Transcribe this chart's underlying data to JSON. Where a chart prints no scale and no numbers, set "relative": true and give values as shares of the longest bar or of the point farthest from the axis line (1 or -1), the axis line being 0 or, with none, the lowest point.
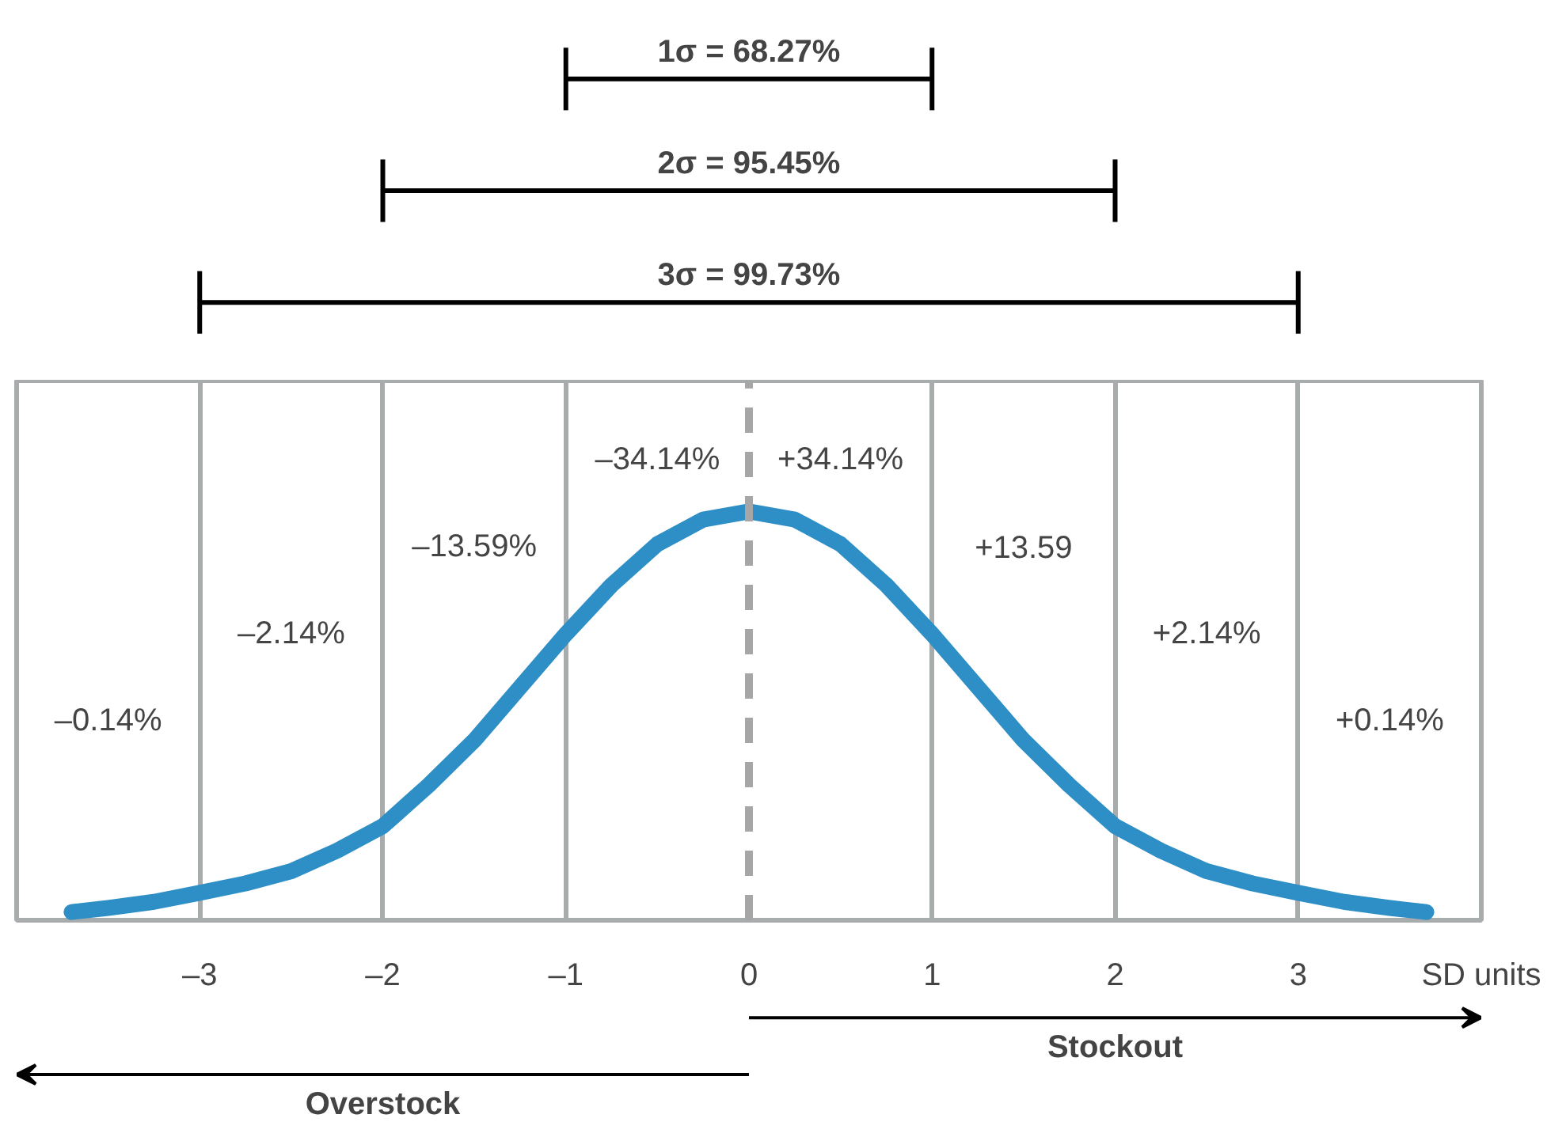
{
  "chart_data": {
    "type": "line",
    "relative": true,
    "xlabel": "SD units",
    "xlim": [
      -4,
      4
    ],
    "xticks": [
      {
        "value": -3,
        "label": "–3"
      },
      {
        "value": -2,
        "label": "–2"
      },
      {
        "value": -1,
        "label": "–1"
      },
      0,
      1,
      2,
      3
    ],
    "grid": "x",
    "series": [
      {
        "color": "#2e8fc6",
        "x": [
          -3.7,
          -3.5,
          -3.25,
          -3,
          -2.75,
          -2.5,
          -2.25,
          -2,
          -1.75,
          -1.5,
          -1.25,
          -1,
          -0.75,
          -0.5,
          -0.25,
          0,
          0.25,
          0.5,
          0.75,
          1,
          1.25,
          1.5,
          1.75,
          2,
          2.25,
          2.5,
          2.75,
          3,
          3.25,
          3.5,
          3.7
        ],
        "values": [
          0.02,
          0.03,
          0.045,
          0.067,
          0.09,
          0.12,
          0.17,
          0.23,
          0.33,
          0.44,
          0.57,
          0.7,
          0.82,
          0.92,
          0.98,
          1,
          0.98,
          0.92,
          0.82,
          0.7,
          0.57,
          0.44,
          0.33,
          0.23,
          0.17,
          0.12,
          0.09,
          0.067,
          0.045,
          0.03,
          0.02
        ]
      }
    ],
    "ref_lines": [
      {
        "axis": "x",
        "value": 0,
        "color": "#a6a6a6",
        "line_style": "dashed"
      }
    ],
    "annotations": [
      "1σ = 68.27%",
      "2σ = 95.45%",
      "3σ = 99.73%",
      "–0.14%",
      "–2.14%",
      "–13.59%",
      "–34.14%",
      "+34.14%",
      "+13.59",
      "+2.14%",
      "+0.14%",
      "Stockout",
      "Overstock"
    ]
  }
}
